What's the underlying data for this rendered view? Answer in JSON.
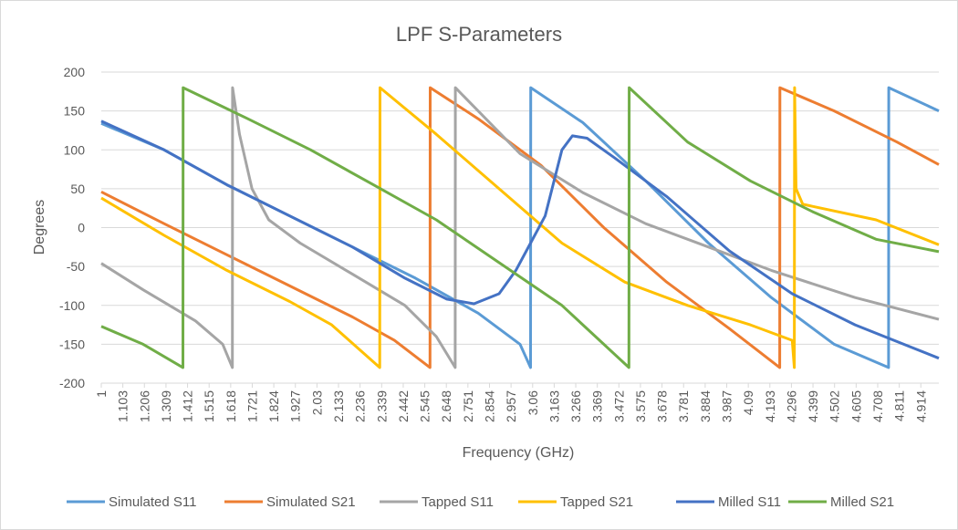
{
  "chart_data": {
    "type": "line",
    "title": "LPF S-Parameters",
    "xlabel": "Frequency (GHz)",
    "ylabel": "Degrees",
    "xlim": [
      1,
      5.0
    ],
    "ylim": [
      -200,
      200
    ],
    "yticks": [
      200,
      150,
      100,
      50,
      0,
      -50,
      -100,
      -150,
      -200
    ],
    "xticks": [
      "1",
      "1.103",
      "1.206",
      "1.309",
      "1.412",
      "1.515",
      "1.618",
      "1.721",
      "1.824",
      "1.927",
      "2.03",
      "2.133",
      "2.236",
      "2.339",
      "2.442",
      "2.545",
      "2.648",
      "2.751",
      "2.854",
      "2.957",
      "3.06",
      "3.163",
      "3.266",
      "3.369",
      "3.472",
      "3.575",
      "3.678",
      "3.781",
      "3.884",
      "3.987",
      "4.09",
      "4.193",
      "4.296",
      "4.399",
      "4.502",
      "4.605",
      "4.708",
      "4.811",
      "4.914"
    ],
    "grid": "horizontal",
    "legend": "bottom",
    "series": [
      {
        "name": "Simulated S11",
        "color": "#5b9bd5",
        "points": [
          [
            1,
            134
          ],
          [
            1.3,
            100
          ],
          [
            1.6,
            55
          ],
          [
            1.9,
            15
          ],
          [
            2.2,
            -25
          ],
          [
            2.5,
            -65
          ],
          [
            2.8,
            -110
          ],
          [
            3.0,
            -150
          ],
          [
            3.05,
            -180
          ],
          [
            3.051,
            180
          ],
          [
            3.3,
            135
          ],
          [
            3.6,
            60
          ],
          [
            3.9,
            -20
          ],
          [
            4.2,
            -90
          ],
          [
            4.5,
            -150
          ],
          [
            4.76,
            -180
          ],
          [
            4.761,
            180
          ],
          [
            5.0,
            150
          ]
        ]
      },
      {
        "name": "Simulated S21",
        "color": "#ed7d31",
        "points": [
          [
            1,
            46
          ],
          [
            1.3,
            5
          ],
          [
            1.6,
            -35
          ],
          [
            1.9,
            -75
          ],
          [
            2.2,
            -115
          ],
          [
            2.4,
            -145
          ],
          [
            2.57,
            -180
          ],
          [
            2.571,
            180
          ],
          [
            2.8,
            140
          ],
          [
            3.1,
            80
          ],
          [
            3.4,
            0
          ],
          [
            3.7,
            -70
          ],
          [
            4.0,
            -130
          ],
          [
            4.24,
            -180
          ],
          [
            4.241,
            180
          ],
          [
            4.5,
            150
          ],
          [
            4.8,
            110
          ],
          [
            5.0,
            81
          ]
        ]
      },
      {
        "name": "Tapped S11",
        "color": "#a5a5a5",
        "points": [
          [
            1,
            -46
          ],
          [
            1.2,
            -80
          ],
          [
            1.45,
            -120
          ],
          [
            1.58,
            -150
          ],
          [
            1.626,
            -180
          ],
          [
            1.627,
            180
          ],
          [
            1.66,
            120
          ],
          [
            1.72,
            50
          ],
          [
            1.8,
            10
          ],
          [
            1.95,
            -20
          ],
          [
            2.2,
            -60
          ],
          [
            2.45,
            -100
          ],
          [
            2.6,
            -140
          ],
          [
            2.69,
            -180
          ],
          [
            2.691,
            180
          ],
          [
            3.0,
            95
          ],
          [
            3.3,
            45
          ],
          [
            3.6,
            5
          ],
          [
            3.9,
            -25
          ],
          [
            4.2,
            -55
          ],
          [
            4.6,
            -90
          ],
          [
            5.0,
            -118
          ]
        ]
      },
      {
        "name": "Tapped S21",
        "color": "#ffc000",
        "points": [
          [
            1,
            38
          ],
          [
            1.3,
            -10
          ],
          [
            1.6,
            -55
          ],
          [
            1.9,
            -95
          ],
          [
            2.1,
            -125
          ],
          [
            2.33,
            -180
          ],
          [
            2.331,
            180
          ],
          [
            2.6,
            120
          ],
          [
            2.9,
            50
          ],
          [
            3.2,
            -20
          ],
          [
            3.5,
            -70
          ],
          [
            3.8,
            -100
          ],
          [
            4.1,
            -125
          ],
          [
            4.3,
            -145
          ],
          [
            4.31,
            -180
          ],
          [
            4.311,
            180
          ],
          [
            4.318,
            50
          ],
          [
            4.35,
            30
          ],
          [
            4.7,
            10
          ],
          [
            5.0,
            -22
          ]
        ]
      },
      {
        "name": "Milled S11",
        "color": "#4472c4",
        "points": [
          [
            1,
            137
          ],
          [
            1.3,
            100
          ],
          [
            1.6,
            55
          ],
          [
            1.9,
            15
          ],
          [
            2.2,
            -25
          ],
          [
            2.45,
            -65
          ],
          [
            2.65,
            -92
          ],
          [
            2.78,
            -98
          ],
          [
            2.9,
            -85
          ],
          [
            2.98,
            -55
          ],
          [
            3.05,
            -20
          ],
          [
            3.12,
            15
          ],
          [
            3.2,
            100
          ],
          [
            3.25,
            118
          ],
          [
            3.32,
            115
          ],
          [
            3.45,
            90
          ],
          [
            3.7,
            40
          ],
          [
            4.0,
            -30
          ],
          [
            4.3,
            -85
          ],
          [
            4.6,
            -125
          ],
          [
            5.0,
            -168
          ]
        ]
      },
      {
        "name": "Milled S21",
        "color": "#70ad47",
        "points": [
          [
            1,
            -127
          ],
          [
            1.2,
            -150
          ],
          [
            1.39,
            -180
          ],
          [
            1.391,
            180
          ],
          [
            1.7,
            140
          ],
          [
            2.0,
            100
          ],
          [
            2.3,
            55
          ],
          [
            2.6,
            10
          ],
          [
            2.9,
            -45
          ],
          [
            3.2,
            -100
          ],
          [
            3.4,
            -150
          ],
          [
            3.52,
            -180
          ],
          [
            3.521,
            180
          ],
          [
            3.8,
            110
          ],
          [
            4.1,
            60
          ],
          [
            4.4,
            20
          ],
          [
            4.7,
            -15
          ],
          [
            5.0,
            -31
          ]
        ]
      }
    ]
  }
}
